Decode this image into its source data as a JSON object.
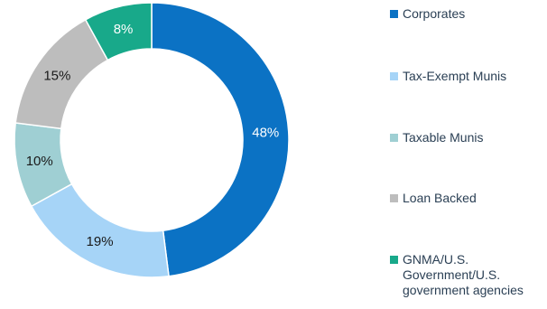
{
  "chart_data": {
    "type": "pie",
    "donut": true,
    "title": "",
    "slices": [
      {
        "label": "Corporates",
        "value": 48,
        "display": "48%",
        "color": "#0b72c4",
        "label_color": "#ffffff"
      },
      {
        "label": "Tax-Exempt Munis",
        "value": 19,
        "display": "19%",
        "color": "#a6d4f7",
        "label_color": "#1a1a1a"
      },
      {
        "label": "Taxable Munis",
        "value": 10,
        "display": "10%",
        "color": "#9fcfd3",
        "label_color": "#1a1a1a"
      },
      {
        "label": "Loan Backed",
        "value": 15,
        "display": "15%",
        "color": "#bdbdbd",
        "label_color": "#1a1a1a"
      },
      {
        "label": "GNMA/U.S. Government/U.S. government agencies",
        "value": 8,
        "display": "8%",
        "color": "#18a98a",
        "label_color": "#ffffff"
      }
    ],
    "legend": {
      "placement": "right",
      "items": [
        {
          "lines": [
            "Corporates"
          ],
          "color": "#0b72c4"
        },
        {
          "lines": [
            "Tax-Exempt Munis"
          ],
          "color": "#a6d4f7"
        },
        {
          "lines": [
            "Taxable Munis"
          ],
          "color": "#9fcfd3"
        },
        {
          "lines": [
            "Loan Backed"
          ],
          "color": "#bdbdbd"
        },
        {
          "lines": [
            "GNMA/U.S.",
            "Government/U.S.",
            "government agencies"
          ],
          "color": "#18a98a"
        }
      ]
    }
  }
}
